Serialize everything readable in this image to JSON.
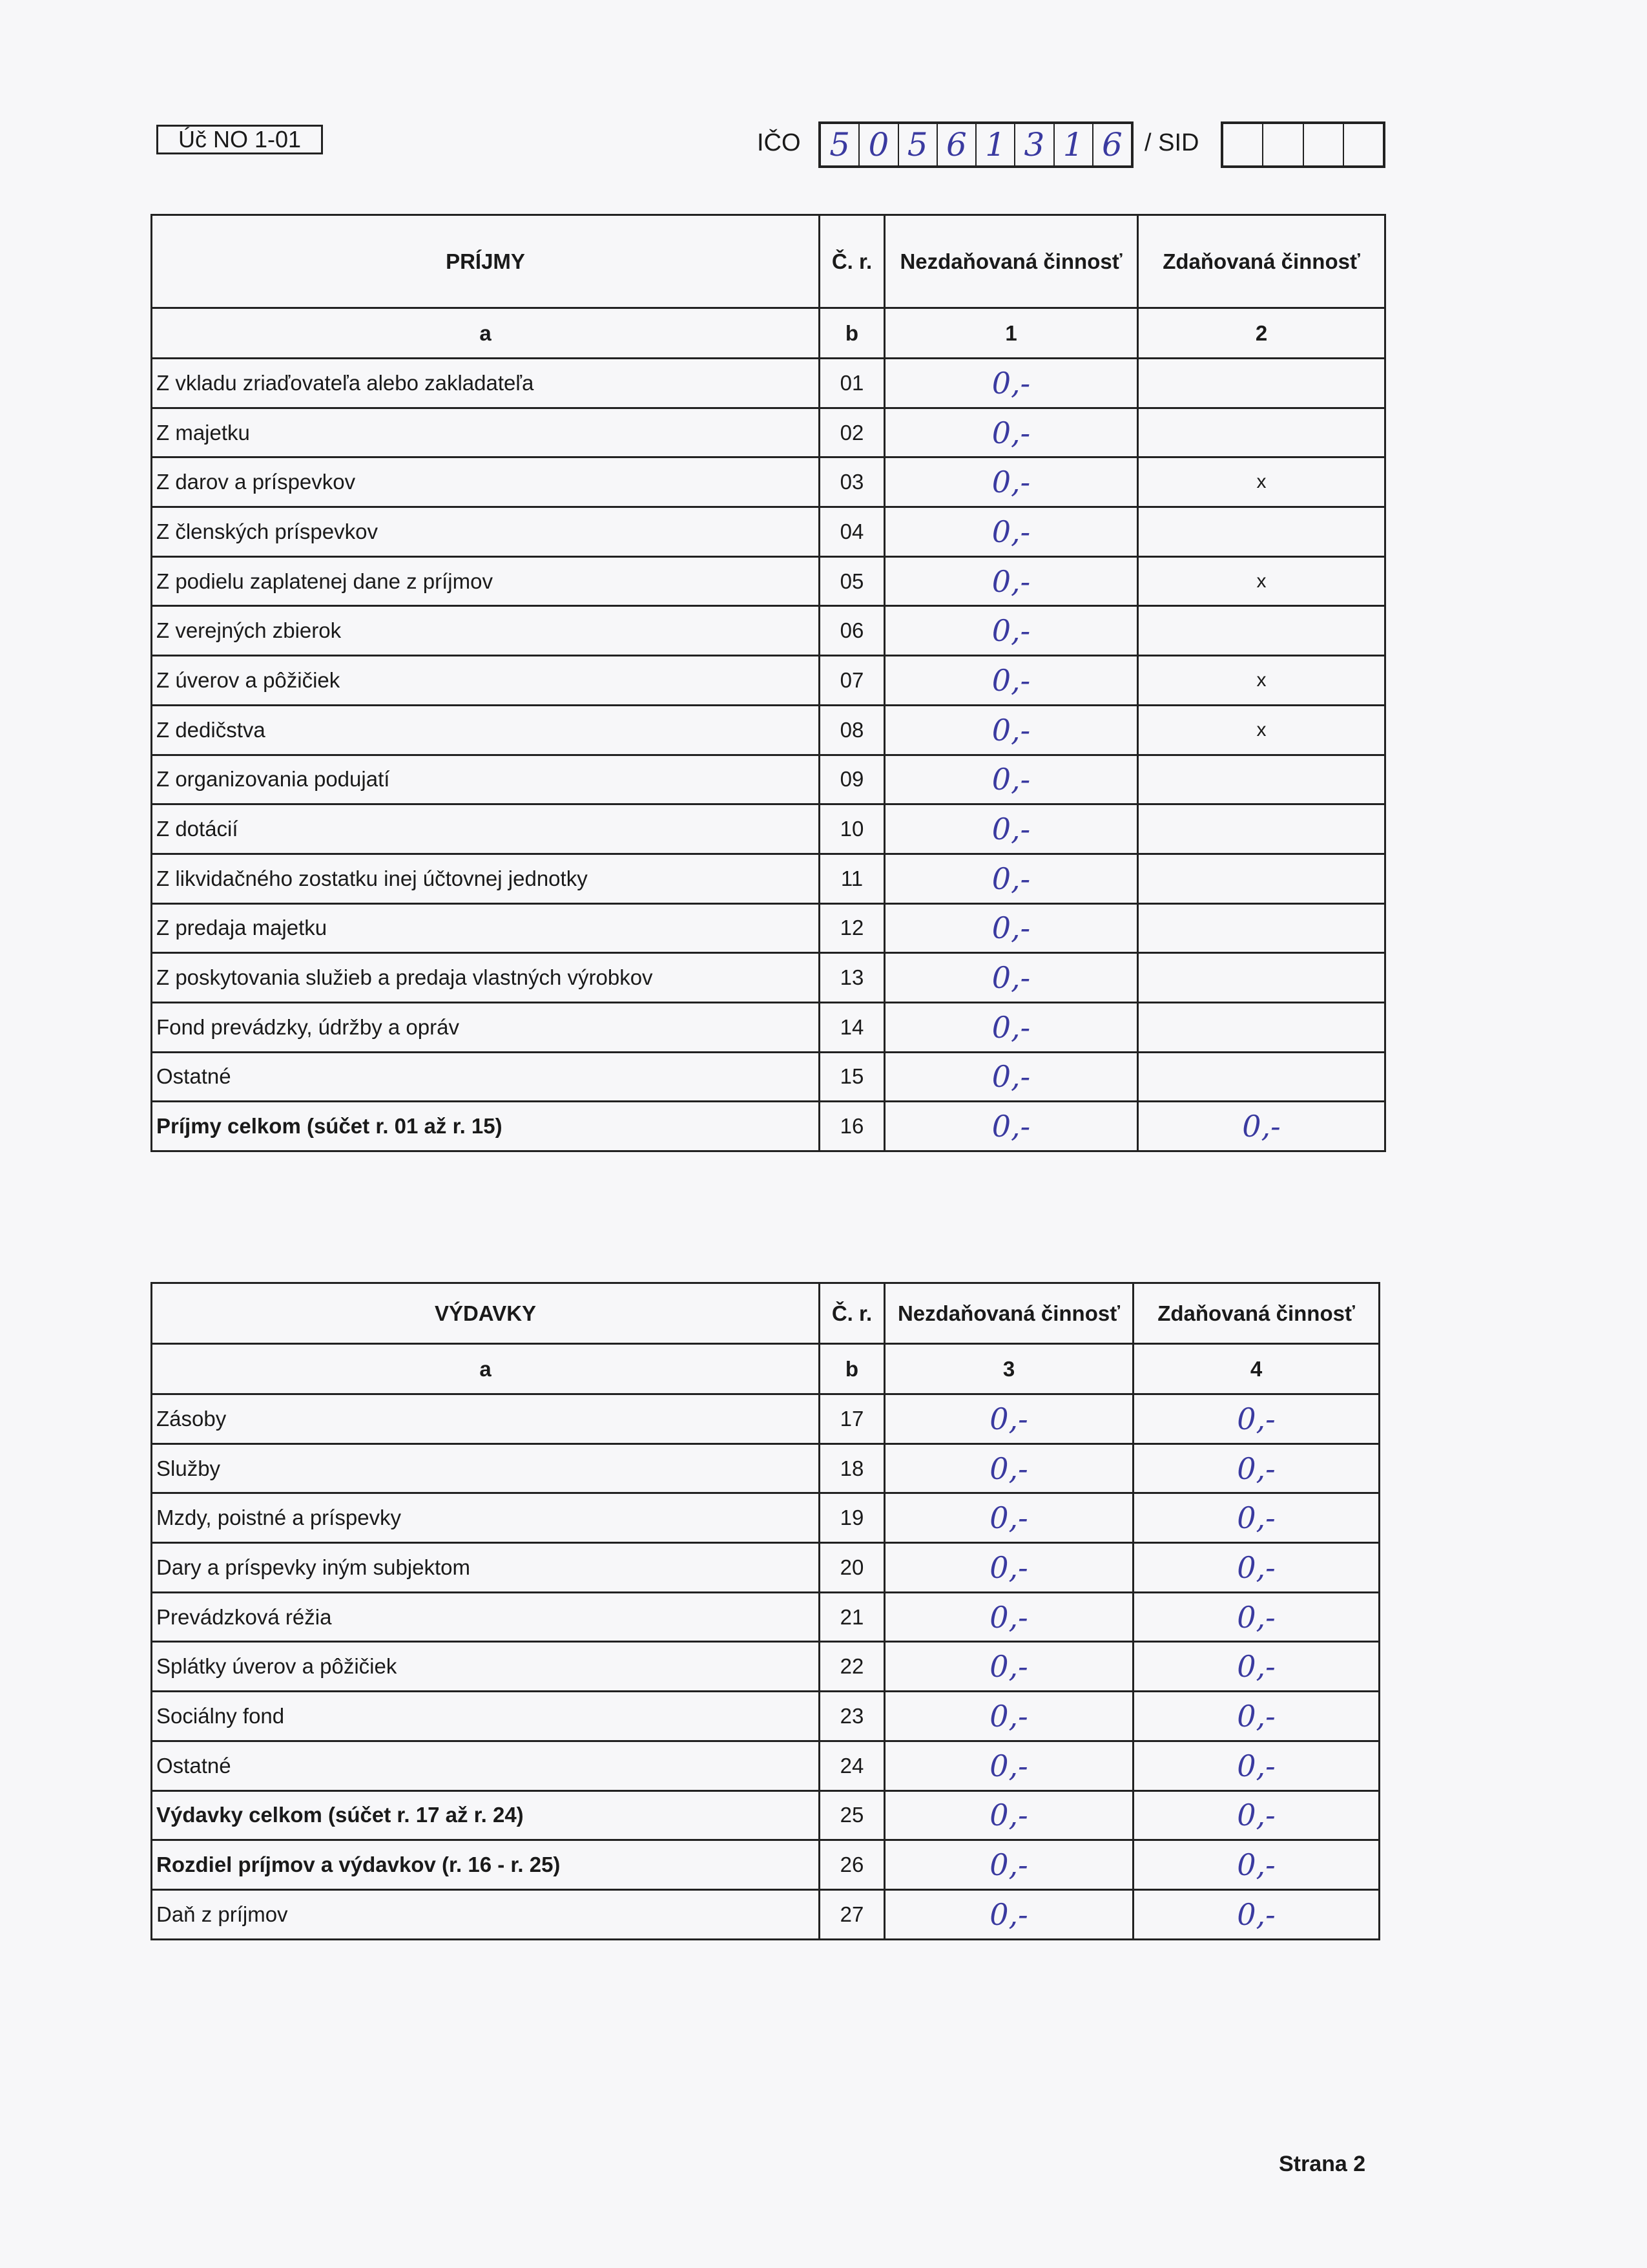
{
  "header": {
    "form_code": "Úč NO 1-01",
    "ico_label": "IČO",
    "ico_digits": [
      "5",
      "0",
      "5",
      "6",
      "1",
      "3",
      "1",
      "6"
    ],
    "sid_label": "/ SID",
    "sid_digits": [
      "",
      "",
      "",
      ""
    ]
  },
  "income": {
    "headers": [
      "PRÍJMY",
      "Č. r.",
      "Nezdaňovaná činnosť",
      "Zdaňovaná činnosť"
    ],
    "subheaders": [
      "a",
      "b",
      "1",
      "2"
    ],
    "rows": [
      {
        "label": "Z vkladu zriaďovateľa alebo zakladateľa",
        "no": "01",
        "c1": "0,-",
        "c2": ""
      },
      {
        "label": "Z majetku",
        "no": "02",
        "c1": "0,-",
        "c2": ""
      },
      {
        "label": "Z darov a príspevkov",
        "no": "03",
        "c1": "0,-",
        "c2": "x"
      },
      {
        "label": "Z členských príspevkov",
        "no": "04",
        "c1": "0,-",
        "c2": ""
      },
      {
        "label": "Z podielu zaplatenej dane z príjmov",
        "no": "05",
        "c1": "0,-",
        "c2": "x"
      },
      {
        "label": "Z verejných zbierok",
        "no": "06",
        "c1": "0,-",
        "c2": ""
      },
      {
        "label": "Z úverov a pôžičiek",
        "no": "07",
        "c1": "0,-",
        "c2": "x"
      },
      {
        "label": "Z dedičstva",
        "no": "08",
        "c1": "0,-",
        "c2": "x"
      },
      {
        "label": "Z organizovania podujatí",
        "no": "09",
        "c1": "0,-",
        "c2": ""
      },
      {
        "label": "Z dotácií",
        "no": "10",
        "c1": "0,-",
        "c2": ""
      },
      {
        "label": "Z likvidačného zostatku inej účtovnej jednotky",
        "no": "11",
        "c1": "0,-",
        "c2": ""
      },
      {
        "label": "Z predaja majetku",
        "no": "12",
        "c1": "0,-",
        "c2": ""
      },
      {
        "label": "Z poskytovania služieb a predaja vlastných výrobkov",
        "no": "13",
        "c1": "0,-",
        "c2": ""
      },
      {
        "label": "Fond prevádzky, údržby a opráv",
        "no": "14",
        "c1": "0,-",
        "c2": ""
      },
      {
        "label": "Ostatné",
        "no": "15",
        "c1": "0,-",
        "c2": ""
      },
      {
        "label": "Príjmy celkom (súčet r. 01 až r. 15)",
        "no": "16",
        "c1": "0,-",
        "c2": "0,-",
        "bold": true
      }
    ]
  },
  "expenses": {
    "headers": [
      "VÝDAVKY",
      "Č. r.",
      "Nezdaňovaná činnosť",
      "Zdaňovaná činnosť"
    ],
    "subheaders": [
      "a",
      "b",
      "3",
      "4"
    ],
    "rows": [
      {
        "label": "Zásoby",
        "no": "17",
        "c1": "0,-",
        "c2": "0,-"
      },
      {
        "label": "Služby",
        "no": "18",
        "c1": "0,-",
        "c2": "0,-"
      },
      {
        "label": "Mzdy, poistné a príspevky",
        "no": "19",
        "c1": "0,-",
        "c2": "0,-"
      },
      {
        "label": "Dary a príspevky iným subjektom",
        "no": "20",
        "c1": "0,-",
        "c2": "0,-"
      },
      {
        "label": "Prevádzková réžia",
        "no": "21",
        "c1": "0,-",
        "c2": "0,-"
      },
      {
        "label": "Splátky úverov a pôžičiek",
        "no": "22",
        "c1": "0,-",
        "c2": "0,-"
      },
      {
        "label": "Sociálny fond",
        "no": "23",
        "c1": "0,-",
        "c2": "0,-"
      },
      {
        "label": "Ostatné",
        "no": "24",
        "c1": "0,-",
        "c2": "0,-"
      },
      {
        "label": "Výdavky celkom (súčet r. 17 až r. 24)",
        "no": "25",
        "c1": "0,-",
        "c2": "0,-",
        "bold": true
      },
      {
        "label": "Rozdiel príjmov a výdavkov (r. 16 - r. 25)",
        "no": "26",
        "c1": "0,-",
        "c2": "0,-",
        "bold": true
      },
      {
        "label": "Daň z príjmov",
        "no": "27",
        "c1": "0,-",
        "c2": "0,-"
      }
    ]
  },
  "footer": {
    "page": "Strana 2"
  }
}
